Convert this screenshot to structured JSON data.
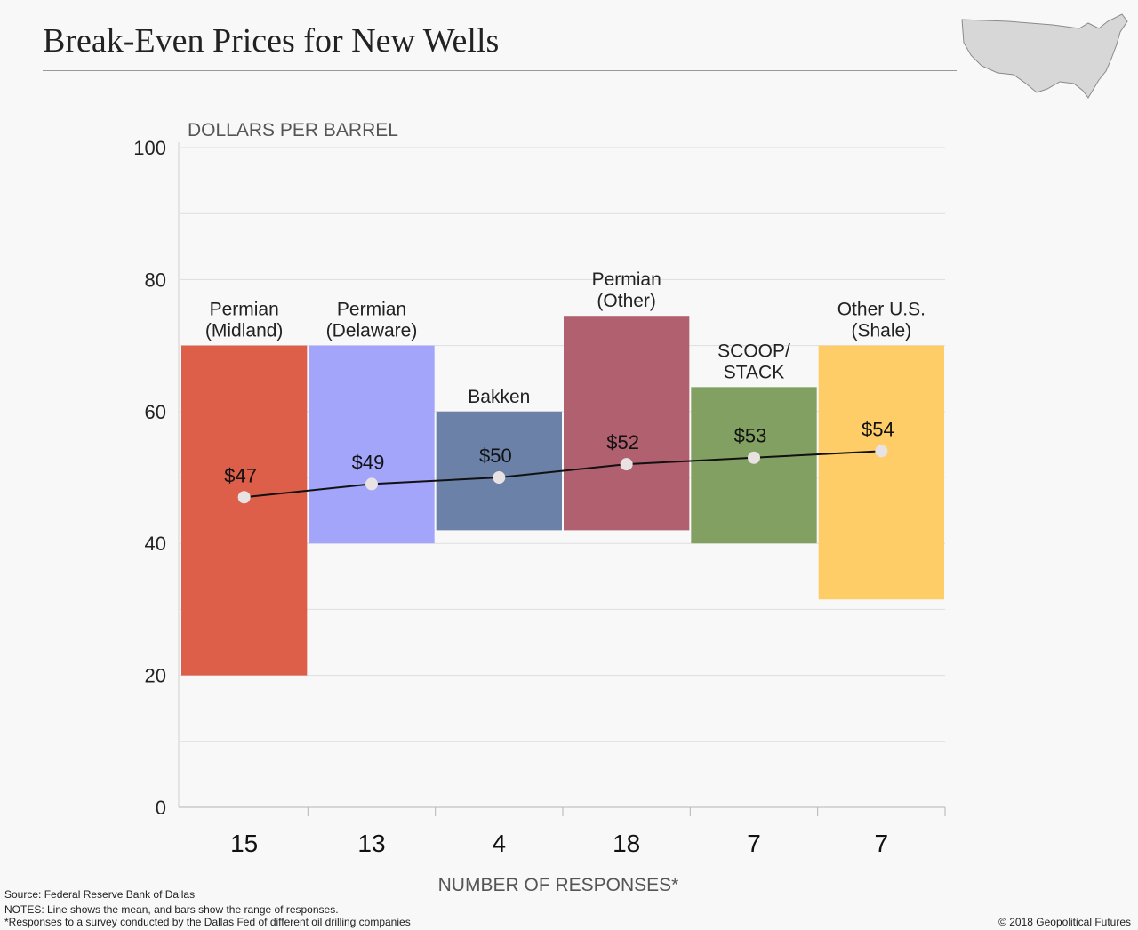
{
  "header": {
    "title": "Break-Even Prices for New Wells"
  },
  "chart_data": {
    "type": "bar",
    "subtype": "floating-range-bars-with-mean-line",
    "ylabel": "DOLLARS PER BARREL",
    "xlabel": "NUMBER OF RESPONSES*",
    "ylim": [
      0,
      100
    ],
    "yticks": [
      "0",
      "20",
      "40",
      "60",
      "80",
      "100"
    ],
    "grid": true,
    "categories": [
      {
        "label": [
          "Permian",
          "(Midland)"
        ],
        "responses": "15",
        "low": 20,
        "high": 70,
        "mean": 47,
        "mean_label": "$47",
        "color": "#dd5e49"
      },
      {
        "label": [
          "Permian",
          "(Delaware)"
        ],
        "responses": "13",
        "low": 40,
        "high": 70,
        "mean": 49,
        "mean_label": "$49",
        "color": "#a2a5fa"
      },
      {
        "label": [
          "Bakken"
        ],
        "responses": "4",
        "low": 42,
        "high": 60,
        "mean": 50,
        "mean_label": "$50",
        "color": "#6c81a8"
      },
      {
        "label": [
          "Permian",
          "(Other)"
        ],
        "responses": "18",
        "low": 42,
        "high": 74.5,
        "mean": 52,
        "mean_label": "$52",
        "color": "#b0606f"
      },
      {
        "label": [
          "SCOOP/",
          "STACK"
        ],
        "responses": "7",
        "low": 40,
        "high": 63.7,
        "mean": 53,
        "mean_label": "$53",
        "color": "#82a062"
      },
      {
        "label": [
          "Other U.S.",
          "(Shale)"
        ],
        "responses": "7",
        "low": 31.5,
        "high": 70,
        "mean": 54,
        "mean_label": "$54",
        "color": "#fecd67"
      }
    ]
  },
  "footer": {
    "source": "Source: Federal Reserve Bank of Dallas",
    "notes": "NOTES: Line shows the mean, and bars show the range of responses.",
    "survey": "*Responses to a survey conducted by the Dallas Fed of different oil drilling companies",
    "copyright": "© 2018 Geopolitical Futures"
  },
  "icons": {
    "map": "us-map-icon"
  }
}
